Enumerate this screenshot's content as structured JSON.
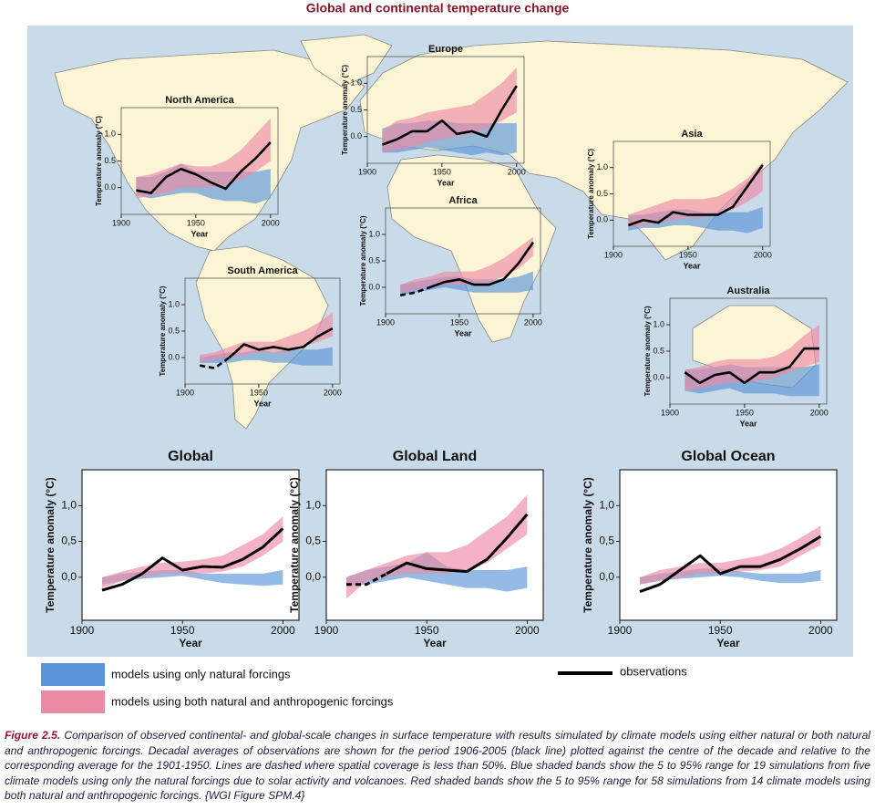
{
  "title": "Global and continental temperature change",
  "legend": [
    {
      "name": "models using only natural forcings",
      "color": "#5b95d8"
    },
    {
      "name": "models using both natural and anthropogenic forcings",
      "color": "#ee8ba4"
    },
    {
      "name": "observations",
      "color": "#000000"
    }
  ],
  "caption": {
    "label": "Figure 2.5.",
    "text": "Comparison of observed continental- and global-scale changes in surface temperature with results simulated by climate models using either natural or both natural and anthropogenic forcings. Decadal averages of observations are shown for the period 1906-2005 (black line) plotted against the centre of the decade and relative to the corresponding average for the 1901-1950. Lines are dashed where spatial coverage is less than 50%. Blue shaded bands show the 5 to 95% range for 19 simulations from five climate models using only the natural forcings due to solar activity and volcanoes. Red shaded bands show the 5 to 95% range for 58 simulations from 14 climate models using both natural and anthropogenic forcings. {WGI Figure SPM.4}"
  },
  "chart_data": [
    {
      "type": "band-line",
      "title": "North America",
      "xlabel": "Year",
      "ylabel": "Temperature anomaly (°C)",
      "x": [
        1910,
        1920,
        1930,
        1940,
        1950,
        1960,
        1970,
        1980,
        1990,
        2000
      ],
      "xlim": [
        1900,
        2005
      ],
      "xticks": [
        1900,
        1950,
        2000
      ],
      "ylim": [
        -0.5,
        1.5
      ],
      "yticks": [
        {
          "value": 0,
          "label": "0.0"
        },
        {
          "value": 0.5,
          "label": "0.5"
        },
        {
          "value": 1,
          "label": "1.0"
        }
      ],
      "series": [
        {
          "color": "#5b95d8",
          "low": [
            -0.15,
            -0.2,
            -0.15,
            -0.1,
            -0.1,
            -0.2,
            -0.25,
            -0.25,
            -0.3,
            -0.2
          ],
          "high": [
            0.2,
            0.2,
            0.3,
            0.45,
            0.3,
            0.3,
            0.3,
            0.3,
            0.3,
            0.35
          ]
        },
        {
          "color": "#ee8ba4",
          "low": [
            -0.2,
            -0.15,
            -0.1,
            0,
            0,
            0,
            0.05,
            0.15,
            0.3,
            0.5
          ],
          "high": [
            0.2,
            0.25,
            0.35,
            0.45,
            0.4,
            0.4,
            0.5,
            0.7,
            1.0,
            1.3
          ]
        },
        {
          "color": "#000000",
          "values": [
            -0.05,
            -0.1,
            0.2,
            0.35,
            0.25,
            0.1,
            -0.02,
            0.3,
            0.55,
            0.85
          ]
        }
      ]
    },
    {
      "type": "band-line",
      "title": "Europe",
      "xlabel": "Year",
      "ylabel": "Temperature anomaly (°C)",
      "x": [
        1910,
        1920,
        1930,
        1940,
        1950,
        1960,
        1970,
        1980,
        1990,
        2000
      ],
      "xlim": [
        1900,
        2005
      ],
      "xticks": [
        1900,
        1950,
        2000
      ],
      "ylim": [
        -0.5,
        1.5
      ],
      "yticks": [
        {
          "value": 0,
          "label": "0.0"
        },
        {
          "value": 0.5,
          "label": "0.5"
        },
        {
          "value": 1,
          "label": "1.0"
        }
      ],
      "series": [
        {
          "color": "#5b95d8",
          "low": [
            -0.3,
            -0.3,
            -0.25,
            -0.2,
            -0.25,
            -0.3,
            -0.35,
            -0.3,
            -0.35,
            -0.3
          ],
          "high": [
            0.15,
            0.25,
            0.25,
            0.3,
            0.3,
            0.25,
            0.25,
            0.25,
            0.25,
            0.25
          ]
        },
        {
          "color": "#ee8ba4",
          "low": [
            -0.3,
            -0.25,
            -0.2,
            -0.1,
            -0.05,
            0,
            0.05,
            0.15,
            0.3,
            0.45
          ],
          "high": [
            0.1,
            0.3,
            0.35,
            0.45,
            0.5,
            0.55,
            0.6,
            0.8,
            1.0,
            1.3
          ]
        },
        {
          "color": "#000000",
          "values": [
            -0.15,
            -0.05,
            0.1,
            0.1,
            0.3,
            0.05,
            0.1,
            0,
            0.5,
            0.95
          ]
        }
      ]
    },
    {
      "type": "band-line",
      "title": "Asia",
      "xlabel": "Year",
      "ylabel": "Temperature anomaly (°C)",
      "x": [
        1910,
        1920,
        1930,
        1940,
        1950,
        1960,
        1970,
        1980,
        1990,
        2000
      ],
      "xlim": [
        1900,
        2005
      ],
      "xticks": [
        1900,
        1950,
        2000
      ],
      "ylim": [
        -0.5,
        1.5
      ],
      "yticks": [
        {
          "value": 0,
          "label": "0.0"
        },
        {
          "value": 0.5,
          "label": "0.5"
        },
        {
          "value": 1,
          "label": "1.0"
        }
      ],
      "series": [
        {
          "color": "#5b95d8",
          "low": [
            -0.2,
            -0.15,
            -0.15,
            -0.1,
            -0.1,
            -0.15,
            -0.2,
            -0.2,
            -0.25,
            -0.15
          ],
          "high": [
            0.1,
            0.1,
            0.15,
            0.2,
            0.2,
            0.15,
            0.15,
            0.15,
            0.15,
            0.25
          ]
        },
        {
          "color": "#ee8ba4",
          "low": [
            -0.15,
            -0.1,
            -0.05,
            0,
            0.05,
            0.05,
            0.1,
            0.2,
            0.35,
            0.55
          ],
          "high": [
            0.1,
            0.2,
            0.3,
            0.4,
            0.4,
            0.4,
            0.45,
            0.6,
            0.8,
            1.1
          ]
        },
        {
          "color": "#000000",
          "values": [
            -0.1,
            0,
            -0.05,
            0.15,
            0.1,
            0.1,
            0.1,
            0.25,
            0.65,
            1.05
          ]
        }
      ]
    },
    {
      "type": "band-line",
      "title": "Africa",
      "xlabel": "Year",
      "ylabel": "Temperature anomaly (°C)",
      "x": [
        1910,
        1920,
        1930,
        1940,
        1950,
        1960,
        1970,
        1980,
        1990,
        2000
      ],
      "xlim": [
        1900,
        2005
      ],
      "xticks": [
        1900,
        1950,
        2000
      ],
      "ylim": [
        -0.5,
        1.5
      ],
      "yticks": [
        {
          "value": 0,
          "label": "0.0"
        },
        {
          "value": 0.5,
          "label": "0.5"
        },
        {
          "value": 1,
          "label": "1.0"
        }
      ],
      "series": [
        {
          "color": "#5b95d8",
          "low": [
            -0.15,
            -0.1,
            -0.05,
            0,
            -0.05,
            -0.1,
            -0.1,
            -0.1,
            -0.1,
            -0.05
          ],
          "high": [
            0.05,
            0.1,
            0.15,
            0.2,
            0.2,
            0.15,
            0.15,
            0.15,
            0.2,
            0.3
          ]
        },
        {
          "color": "#ee8ba4",
          "low": [
            -0.1,
            -0.05,
            0,
            0.05,
            0.05,
            0.05,
            0.1,
            0.2,
            0.35,
            0.6
          ],
          "high": [
            0.05,
            0.15,
            0.2,
            0.3,
            0.3,
            0.3,
            0.4,
            0.55,
            0.75,
            0.95
          ]
        },
        {
          "color": "#000000",
          "values": [
            null,
            null,
            0,
            0.1,
            0.15,
            0.05,
            0.05,
            0.15,
            0.45,
            0.85
          ],
          "dashed": [
            -0.15,
            -0.1,
            0,
            null,
            null,
            null,
            null,
            null,
            null,
            null
          ]
        }
      ]
    },
    {
      "type": "band-line",
      "title": "South America",
      "xlabel": "Year",
      "ylabel": "Temperature anomaly (°C)",
      "x": [
        1910,
        1920,
        1930,
        1940,
        1950,
        1960,
        1970,
        1980,
        1990,
        2000
      ],
      "xlim": [
        1900,
        2005
      ],
      "xticks": [
        1900,
        1950,
        2000
      ],
      "ylim": [
        -0.5,
        1.5
      ],
      "yticks": [
        {
          "value": 0,
          "label": "0.0"
        },
        {
          "value": 0.5,
          "label": "0.5"
        },
        {
          "value": 1,
          "label": "1.0"
        }
      ],
      "series": [
        {
          "color": "#5b95d8",
          "low": [
            -0.1,
            -0.1,
            -0.1,
            -0.05,
            -0.05,
            -0.1,
            -0.1,
            -0.15,
            -0.15,
            -0.15
          ],
          "high": [
            0,
            0.05,
            0.1,
            0.1,
            0.15,
            0.1,
            0.15,
            0.15,
            0.15,
            0.2
          ]
        },
        {
          "color": "#ee8ba4",
          "low": [
            -0.1,
            -0.05,
            0,
            0.05,
            0.1,
            0.1,
            0.1,
            0.2,
            0.3,
            0.4
          ],
          "high": [
            0.05,
            0.1,
            0.2,
            0.3,
            0.3,
            0.3,
            0.4,
            0.5,
            0.65,
            0.85
          ]
        },
        {
          "color": "#000000",
          "values": [
            null,
            null,
            0,
            0.25,
            0.15,
            0.2,
            0.15,
            0.2,
            0.4,
            0.55
          ],
          "dashed": [
            -0.15,
            -0.2,
            0,
            null,
            null,
            null,
            null,
            null,
            null,
            null
          ]
        }
      ]
    },
    {
      "type": "band-line",
      "title": "Australia",
      "xlabel": "Year",
      "ylabel": "Temperature anomaly (°C)",
      "x": [
        1910,
        1920,
        1930,
        1940,
        1950,
        1960,
        1970,
        1980,
        1990,
        2000
      ],
      "xlim": [
        1900,
        2005
      ],
      "xticks": [
        1900,
        1950,
        2000
      ],
      "ylim": [
        -0.5,
        1.5
      ],
      "yticks": [
        {
          "value": 0,
          "label": "0.0"
        },
        {
          "value": 0.5,
          "label": "0.5"
        },
        {
          "value": 1,
          "label": "1.0"
        }
      ],
      "series": [
        {
          "color": "#5b95d8",
          "low": [
            -0.25,
            -0.3,
            -0.25,
            -0.2,
            -0.3,
            -0.3,
            -0.3,
            -0.35,
            -0.35,
            -0.35
          ],
          "high": [
            0.15,
            0.15,
            0.2,
            0.25,
            0.2,
            0.2,
            0.2,
            0.2,
            0.2,
            0.25
          ]
        },
        {
          "color": "#ee8ba4",
          "low": [
            -0.25,
            -0.2,
            -0.15,
            -0.1,
            -0.1,
            -0.05,
            0,
            0.1,
            0.2,
            0.3
          ],
          "high": [
            0.15,
            0.2,
            0.3,
            0.35,
            0.35,
            0.35,
            0.4,
            0.55,
            0.8,
            1.0
          ]
        },
        {
          "color": "#000000",
          "values": [
            0.1,
            -0.1,
            0.05,
            0.1,
            -0.1,
            0.1,
            0.1,
            0.2,
            0.55,
            0.55
          ]
        }
      ]
    },
    {
      "type": "band-line",
      "title": "Global",
      "xlabel": "Year",
      "ylabel": "Temperature anomaly (°C)",
      "x": [
        1910,
        1920,
        1930,
        1940,
        1950,
        1960,
        1970,
        1980,
        1990,
        2000
      ],
      "xlim": [
        1900,
        2008
      ],
      "xticks": [
        1900,
        1950,
        2000
      ],
      "ylim": [
        -0.6,
        1.5
      ],
      "yticks": [
        {
          "value": 0,
          "label": "0,0"
        },
        {
          "value": 0.5,
          "label": "0,5"
        },
        {
          "value": 1,
          "label": "1,0"
        }
      ],
      "series": [
        {
          "color": "#5b95d8",
          "low": [
            -0.1,
            -0.05,
            -0.02,
            0,
            0.02,
            -0.03,
            -0.08,
            -0.1,
            -0.12,
            -0.1
          ],
          "high": [
            0,
            0.05,
            0.08,
            0.1,
            0.1,
            0.05,
            0.05,
            0.05,
            0.05,
            0.1
          ]
        },
        {
          "color": "#ee8ba4",
          "low": [
            -0.15,
            -0.05,
            0,
            0.05,
            0.05,
            0.05,
            0.08,
            0.15,
            0.3,
            0.5
          ],
          "high": [
            0,
            0.08,
            0.15,
            0.2,
            0.22,
            0.25,
            0.3,
            0.45,
            0.6,
            0.85
          ]
        },
        {
          "color": "#000000",
          "values": [
            -0.18,
            -0.1,
            0.05,
            0.27,
            0.1,
            0.15,
            0.14,
            0.25,
            0.42,
            0.68
          ]
        }
      ]
    },
    {
      "type": "band-line",
      "title": "Global Land",
      "xlabel": "Year",
      "ylabel": "Temperature anomaly (°C)",
      "x": [
        1910,
        1920,
        1930,
        1940,
        1950,
        1960,
        1970,
        1980,
        1990,
        2000
      ],
      "xlim": [
        1900,
        2008
      ],
      "xticks": [
        1900,
        1950,
        2000
      ],
      "ylim": [
        -0.6,
        1.5
      ],
      "yticks": [
        {
          "value": 0,
          "label": "0,0"
        },
        {
          "value": 0.5,
          "label": "0,5"
        },
        {
          "value": 1,
          "label": "1,0"
        }
      ],
      "series": [
        {
          "color": "#5b95d8",
          "low": [
            -0.12,
            -0.1,
            -0.05,
            0,
            -0.05,
            -0.1,
            -0.15,
            -0.15,
            -0.2,
            -0.15
          ],
          "high": [
            0,
            0.1,
            0.15,
            0.2,
            0.35,
            0.15,
            0.1,
            0.1,
            0.1,
            0.15
          ]
        },
        {
          "color": "#ee8ba4",
          "low": [
            -0.3,
            -0.05,
            0,
            0.05,
            0.05,
            0.05,
            0.1,
            0.2,
            0.4,
            0.6
          ],
          "high": [
            0,
            0.1,
            0.2,
            0.3,
            0.35,
            0.35,
            0.45,
            0.65,
            0.85,
            1.15
          ]
        },
        {
          "color": "#000000",
          "values": [
            null,
            null,
            0.05,
            0.2,
            0.12,
            0.1,
            0.08,
            0.25,
            0.55,
            0.88
          ],
          "dashed": [
            -0.1,
            -0.1,
            0.05,
            null,
            null,
            null,
            null,
            null,
            null,
            null
          ]
        }
      ]
    },
    {
      "type": "band-line",
      "title": "Global Ocean",
      "xlabel": "Year",
      "ylabel": "Temperature anomaly (°C)",
      "x": [
        1910,
        1920,
        1930,
        1940,
        1950,
        1960,
        1970,
        1980,
        1990,
        2000
      ],
      "xlim": [
        1900,
        2008
      ],
      "xticks": [
        1900,
        1950,
        2000
      ],
      "ylim": [
        -0.6,
        1.5
      ],
      "yticks": [
        {
          "value": 0,
          "label": "0,0"
        },
        {
          "value": 0.5,
          "label": "0,5"
        },
        {
          "value": 1,
          "label": "1,0"
        }
      ],
      "series": [
        {
          "color": "#5b95d8",
          "low": [
            -0.1,
            -0.05,
            -0.02,
            0,
            0.02,
            0,
            -0.05,
            -0.08,
            -0.08,
            -0.05
          ],
          "high": [
            0,
            0.05,
            0.08,
            0.12,
            0.12,
            0.08,
            0.05,
            0.05,
            0.05,
            0.1
          ]
        },
        {
          "color": "#ee8ba4",
          "low": [
            -0.1,
            -0.05,
            0,
            0.05,
            0.05,
            0.08,
            0.1,
            0.15,
            0.3,
            0.45
          ],
          "high": [
            0,
            0.1,
            0.15,
            0.2,
            0.2,
            0.25,
            0.3,
            0.4,
            0.55,
            0.72
          ]
        },
        {
          "color": "#000000",
          "values": [
            -0.2,
            -0.1,
            0.1,
            0.3,
            0.05,
            0.15,
            0.15,
            0.25,
            0.4,
            0.57
          ]
        }
      ]
    }
  ]
}
